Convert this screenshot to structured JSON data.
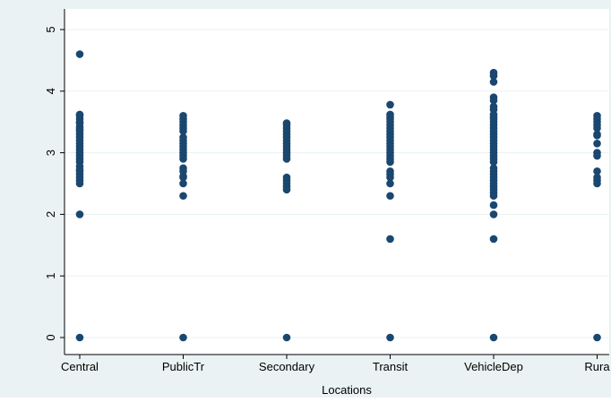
{
  "chart_data": {
    "type": "scatter",
    "title": "",
    "xlabel": "Locations",
    "ylabel": "",
    "categories": [
      "Central",
      "PublicTr",
      "Secondary",
      "Transit",
      "VehicleDep",
      "Rura"
    ],
    "ylim": [
      0,
      5
    ],
    "yticks": [
      0,
      1,
      2,
      3,
      4,
      5
    ],
    "grid": true,
    "legend": "none",
    "colors": {
      "outer_background": "#eaf2f3",
      "plot_background": "#ffffff",
      "grid": "#eaf2f3",
      "marker": "#1a476f"
    },
    "series": [
      {
        "category": "Central",
        "values": [
          4.6,
          3.62,
          3.6,
          3.55,
          3.5,
          3.48,
          3.42,
          3.38,
          3.35,
          3.3,
          3.25,
          3.2,
          3.15,
          3.1,
          3.05,
          3.0,
          2.95,
          2.9,
          2.85,
          2.78,
          2.72,
          2.7,
          2.65,
          2.6,
          2.55,
          2.5,
          2.0,
          0
        ]
      },
      {
        "category": "PublicTr",
        "values": [
          3.6,
          3.55,
          3.5,
          3.45,
          3.4,
          3.35,
          3.25,
          3.2,
          3.15,
          3.1,
          3.05,
          3.0,
          2.95,
          2.9,
          2.75,
          2.7,
          2.62,
          2.6,
          2.5,
          2.3,
          0
        ]
      },
      {
        "category": "Secondary",
        "values": [
          3.48,
          3.45,
          3.4,
          3.35,
          3.3,
          3.25,
          3.2,
          3.15,
          3.1,
          3.05,
          3.0,
          2.95,
          2.9,
          2.6,
          2.55,
          2.5,
          2.45,
          2.4,
          0
        ]
      },
      {
        "category": "Transit",
        "values": [
          3.78,
          3.62,
          3.58,
          3.55,
          3.5,
          3.45,
          3.4,
          3.35,
          3.3,
          3.25,
          3.2,
          3.15,
          3.1,
          3.05,
          3.0,
          2.95,
          2.9,
          2.85,
          2.7,
          2.65,
          2.6,
          2.5,
          2.3,
          1.6,
          0
        ]
      },
      {
        "category": "VehicleDep",
        "values": [
          4.3,
          4.25,
          4.15,
          3.9,
          3.85,
          3.75,
          3.7,
          3.62,
          3.58,
          3.55,
          3.5,
          3.45,
          3.4,
          3.35,
          3.3,
          3.25,
          3.2,
          3.15,
          3.1,
          3.05,
          3.0,
          2.95,
          2.9,
          2.85,
          2.75,
          2.7,
          2.65,
          2.6,
          2.55,
          2.5,
          2.45,
          2.4,
          2.35,
          2.3,
          2.15,
          2.0,
          1.6,
          0
        ]
      },
      {
        "category": "Rura",
        "values": [
          3.6,
          3.55,
          3.5,
          3.45,
          3.4,
          3.3,
          3.28,
          3.15,
          3.0,
          2.95,
          2.7,
          2.6,
          2.55,
          2.5,
          0
        ]
      }
    ]
  }
}
